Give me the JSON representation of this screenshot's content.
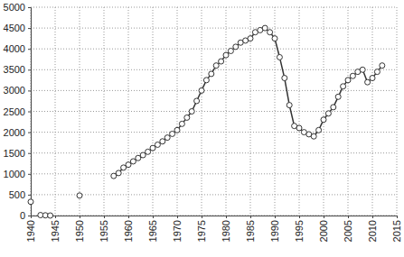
{
  "chart_data": {
    "type": "line",
    "x": [
      1940,
      1941,
      1942,
      1943,
      1944,
      1945,
      1950,
      1951,
      1957,
      1958,
      1959,
      1960,
      1961,
      1962,
      1963,
      1964,
      1965,
      1966,
      1967,
      1968,
      1969,
      1970,
      1971,
      1972,
      1973,
      1974,
      1975,
      1976,
      1977,
      1978,
      1979,
      1980,
      1981,
      1982,
      1983,
      1984,
      1985,
      1986,
      1987,
      1988,
      1989,
      1990,
      1991,
      1992,
      1993,
      1994,
      1995,
      1996,
      1997,
      1998,
      1999,
      2000,
      2001,
      2002,
      2003,
      2004,
      2005,
      2006,
      2007,
      2008,
      2009,
      2010,
      2011,
      2012
    ],
    "values": [
      330,
      null,
      10,
      5,
      0,
      null,
      480,
      null,
      950,
      1020,
      1150,
      1220,
      1300,
      1380,
      1450,
      1530,
      1620,
      1700,
      1780,
      1870,
      1960,
      2050,
      2200,
      2350,
      2500,
      2750,
      3000,
      3250,
      3400,
      3600,
      3700,
      3850,
      3950,
      4050,
      4150,
      4200,
      4250,
      4400,
      4450,
      4500,
      4400,
      4250,
      3800,
      3300,
      2650,
      2150,
      2100,
      2000,
      1950,
      1900,
      2050,
      2300,
      2450,
      2600,
      2850,
      3100,
      3250,
      3350,
      3450,
      3500,
      3200,
      3300,
      3450,
      3600
    ],
    "color": "#333333",
    "marker": "circle",
    "xlim": [
      1940,
      2015
    ],
    "xticks": [
      1940,
      1945,
      1950,
      1955,
      1960,
      1965,
      1970,
      1975,
      1980,
      1985,
      1990,
      1995,
      2000,
      2005,
      2010,
      2015
    ],
    "ylim": [
      0,
      5000
    ],
    "yticks": [
      0,
      500,
      1000,
      1500,
      2000,
      2500,
      3000,
      3500,
      4000,
      4500,
      5000
    ],
    "grid": true
  }
}
